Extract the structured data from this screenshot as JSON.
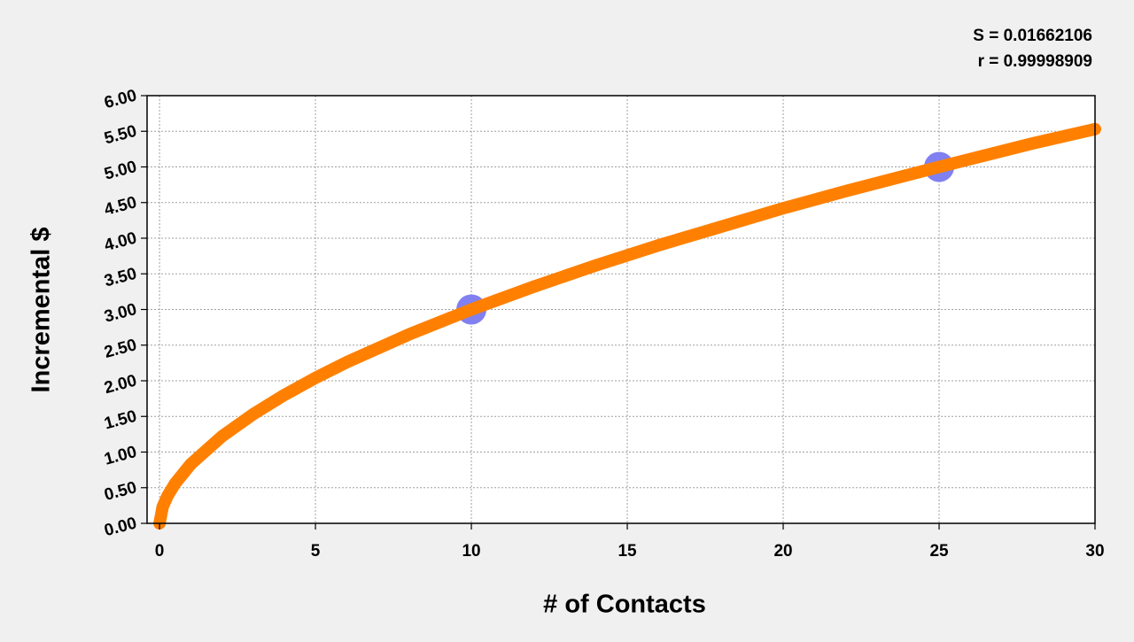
{
  "chart_data": {
    "type": "line",
    "annotations": [
      "S = 0.01662106",
      "r = 0.99998909"
    ],
    "x_label": "# of Contacts",
    "y_label": "Incremental $",
    "xlim": [
      -0.4,
      30
    ],
    "ylim": [
      0,
      6
    ],
    "xticks": [
      0,
      5,
      10,
      15,
      20,
      25,
      30
    ],
    "yticks": [
      {
        "value": 0,
        "label": "0.00"
      },
      {
        "value": 0.5,
        "label": "0.50"
      },
      {
        "value": 1,
        "label": "1.00"
      },
      {
        "value": 1.5,
        "label": "1.50"
      },
      {
        "value": 2,
        "label": "2.00"
      },
      {
        "value": 2.5,
        "label": "2.50"
      },
      {
        "value": 3,
        "label": "3.00"
      },
      {
        "value": 3.5,
        "label": "3.50"
      },
      {
        "value": 4,
        "label": "4.00"
      },
      {
        "value": 4.5,
        "label": "4.50"
      },
      {
        "value": 5,
        "label": "5.00"
      },
      {
        "value": 5.5,
        "label": "5.50"
      },
      {
        "value": 6,
        "label": "6.00"
      }
    ],
    "grid": true,
    "series": [
      {
        "style": "line",
        "color": "#ff8000",
        "x": [
          0,
          0.1,
          0.25,
          0.5,
          1,
          2,
          3,
          4,
          5,
          6,
          8,
          10,
          12,
          14,
          16,
          18,
          20,
          22,
          25,
          28,
          30
        ],
        "values": [
          0,
          0.23,
          0.38,
          0.56,
          0.83,
          1.22,
          1.53,
          1.8,
          2.04,
          2.26,
          2.65,
          3,
          3.32,
          3.62,
          3.9,
          4.16,
          4.42,
          4.66,
          5,
          5.33,
          5.53
        ]
      },
      {
        "style": "points",
        "color": "#8080f0",
        "x": [
          10,
          25
        ],
        "values": [
          3,
          5
        ]
      }
    ]
  }
}
